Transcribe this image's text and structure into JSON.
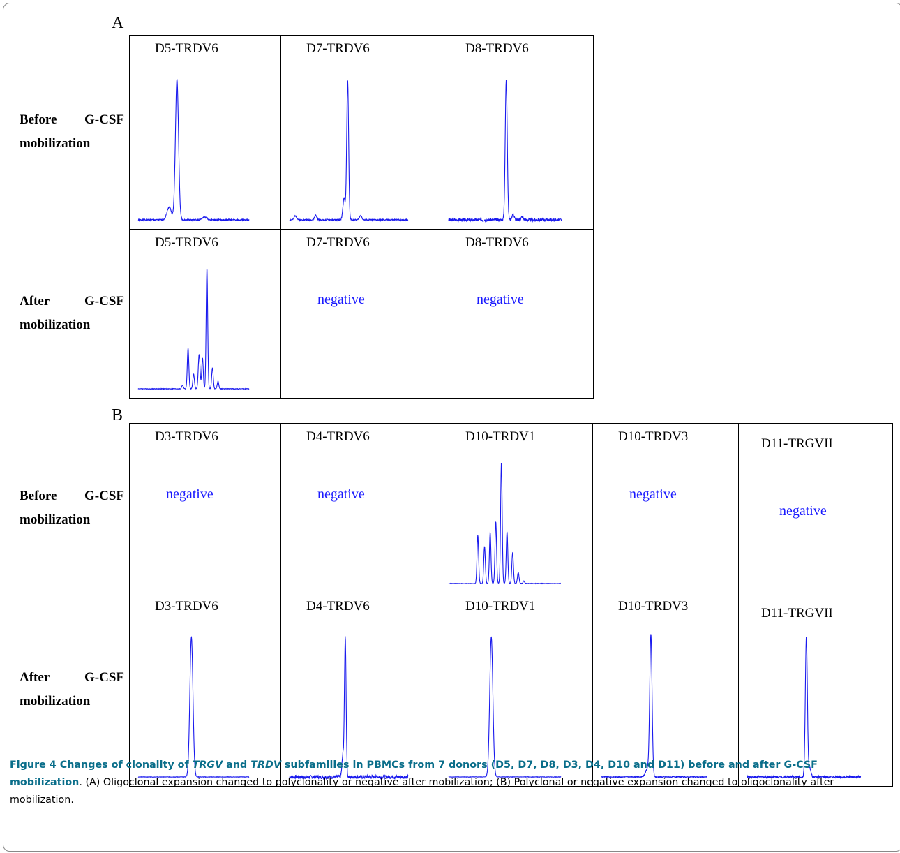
{
  "panels": [
    {
      "letter": "A",
      "rows": [
        {
          "label_l1": [
            "Before",
            "G-CSF"
          ],
          "label_l2": "mobilization",
          "cells": [
            {
              "title": "D5-TRDV6",
              "status": "profile",
              "peaks": [
                [
                  0.35,
                  0.98,
                  0.014
                ],
                [
                  0.28,
                  0.09,
                  0.02
                ],
                [
                  0.6,
                  0.02,
                  0.02
                ]
              ],
              "noise": 0.01
            },
            {
              "title": "D7-TRDV6",
              "status": "profile",
              "peaks": [
                [
                  0.49,
                  0.97,
                  0.008
                ],
                [
                  0.46,
                  0.15,
                  0.01
                ],
                [
                  0.05,
                  0.03,
                  0.01
                ],
                [
                  0.22,
                  0.03,
                  0.01
                ],
                [
                  0.6,
                  0.03,
                  0.01
                ]
              ],
              "noise": 0.01
            },
            {
              "title": "D8-TRDV6",
              "status": "profile",
              "peaks": [
                [
                  0.51,
                  0.98,
                  0.009
                ],
                [
                  0.57,
                  0.04,
                  0.01
                ],
                [
                  0.65,
                  0.02,
                  0.01
                ]
              ],
              "noise": 0.02
            }
          ]
        },
        {
          "label_l1": [
            "After",
            "G-CSF"
          ],
          "label_l2": "mobilization",
          "cells": [
            {
              "title": "D5-TRDV6",
              "status": "profile",
              "peaks": [
                [
                  0.62,
                  0.98,
                  0.007
                ],
                [
                  0.45,
                  0.33,
                  0.007
                ],
                [
                  0.5,
                  0.12,
                  0.007
                ],
                [
                  0.55,
                  0.28,
                  0.008
                ],
                [
                  0.58,
                  0.25,
                  0.007
                ],
                [
                  0.67,
                  0.17,
                  0.007
                ],
                [
                  0.72,
                  0.06,
                  0.007
                ],
                [
                  0.4,
                  0.03,
                  0.007
                ]
              ],
              "noise": 0.005
            },
            {
              "title": "D7-TRDV6",
              "status": "negative",
              "negative_text": "negative"
            },
            {
              "title": "D8-TRDV6",
              "status": "negative",
              "negative_text": "negative"
            }
          ]
        }
      ]
    },
    {
      "letter": "B",
      "rows": [
        {
          "label_l1": [
            "Before",
            "G-CSF"
          ],
          "label_l2": "mobilization",
          "cells": [
            {
              "title": "D3-TRDV6",
              "status": "negative",
              "negative_text": "negative"
            },
            {
              "title": "D4-TRDV6",
              "status": "negative",
              "negative_text": "negative"
            },
            {
              "title": "D10-TRDV1",
              "status": "profile",
              "peaks": [
                [
                  0.47,
                  0.98,
                  0.007
                ],
                [
                  0.26,
                  0.39,
                  0.007
                ],
                [
                  0.32,
                  0.3,
                  0.007
                ],
                [
                  0.37,
                  0.41,
                  0.007
                ],
                [
                  0.42,
                  0.5,
                  0.007
                ],
                [
                  0.52,
                  0.42,
                  0.007
                ],
                [
                  0.57,
                  0.25,
                  0.007
                ],
                [
                  0.62,
                  0.09,
                  0.007
                ],
                [
                  0.67,
                  0.02,
                  0.007
                ]
              ],
              "noise": 0.004
            },
            {
              "title": "D10-TRDV3",
              "status": "negative",
              "negative_text": "negative"
            },
            {
              "title": "D11-TRGVII",
              "status": "negative",
              "negative_text": "negative"
            }
          ]
        },
        {
          "label_l1": [
            "After",
            "G-CSF"
          ],
          "label_l2": "mobilization",
          "cells": [
            {
              "title": "D3-TRDV6",
              "status": "profile",
              "peaks": [
                [
                  0.48,
                  0.98,
                  0.014
                ]
              ],
              "noise": 0.003
            },
            {
              "title": "D4-TRDV6",
              "status": "profile",
              "peaks": [
                [
                  0.47,
                  0.98,
                  0.007
                ],
                [
                  0.45,
                  0.15,
                  0.008
                ]
              ],
              "noise": 0.025
            },
            {
              "title": "D10-TRDV1",
              "status": "profile",
              "peaks": [
                [
                  0.38,
                  0.98,
                  0.014
                ]
              ],
              "noise": 0.003
            },
            {
              "title": "D10-TRDV3",
              "status": "profile",
              "peaks": [
                [
                  0.47,
                  0.98,
                  0.011
                ],
                [
                  0.44,
                  0.06,
                  0.02
                ]
              ],
              "noise": 0.006
            },
            {
              "title": "D11-TRGVII",
              "status": "profile",
              "peaks": [
                [
                  0.52,
                  0.98,
                  0.009
                ],
                [
                  0.55,
                  0.06,
                  0.01
                ]
              ],
              "noise": 0.015
            }
          ]
        }
      ]
    }
  ],
  "caption": {
    "bold_parts": [
      "Figure 4 Changes of clonality of ",
      "TRGV",
      " and ",
      "TRDV",
      " subfamilies in PBMCs from 7 donors (D5, D7, D8, D3, D4, D10 and D11) before and after G-CSF mobilization"
    ],
    "rest": ". (A) Oligoclonal expansion changed to polyclonality or negative after mobilization; (B) Polyclonal or negative expansion changed to oligoclonality after mobilization."
  },
  "colors": {
    "trace": "#1a1aee",
    "negative_text": "#1a1aff",
    "caption_bold": "#0a6e8a"
  }
}
